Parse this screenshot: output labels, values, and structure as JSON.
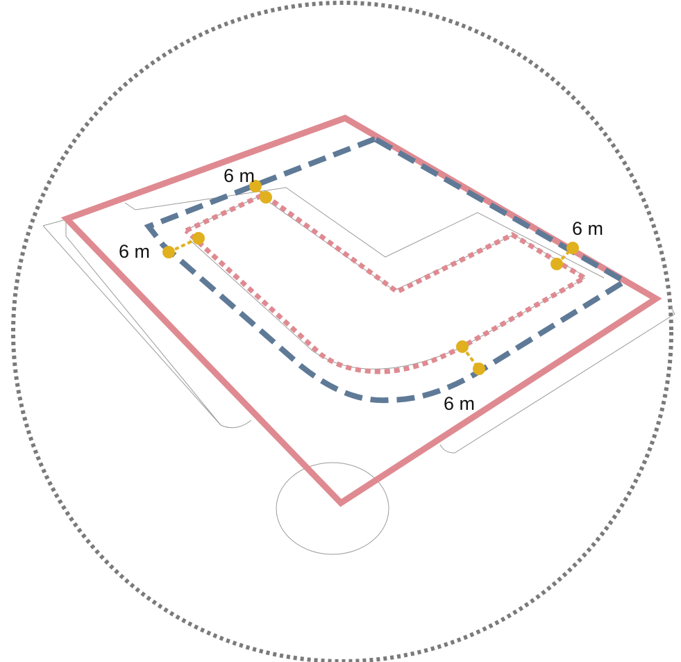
{
  "colors": {
    "boundary_outer": "#df8a91",
    "path_blue": "#5f7a97",
    "path_inner_pink": "#df8a91",
    "dimension_marker": "#e0b01f",
    "circle_dotted": "#7a7a7a",
    "linework": "#9a9a9a",
    "background": "#ffffff"
  },
  "dimensions": [
    {
      "id": "top-left",
      "label": "6 m"
    },
    {
      "id": "left",
      "label": "6 m"
    },
    {
      "id": "right",
      "label": "6 m"
    },
    {
      "id": "bottom",
      "label": "6 m"
    }
  ]
}
